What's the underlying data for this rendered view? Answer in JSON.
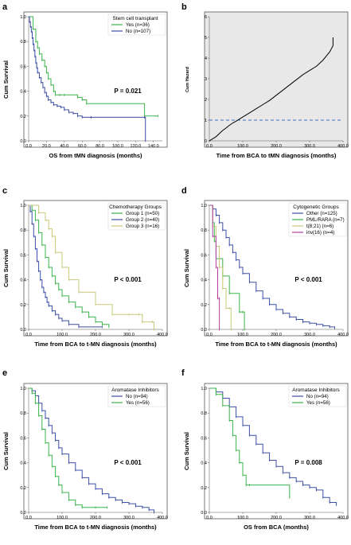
{
  "chart_data": [
    {
      "panel": "a",
      "type": "line",
      "ylabel": "Cum Survival",
      "xlabel": "OS from tMN diagnosis (months)",
      "xlim": [
        0,
        150
      ],
      "ylim": [
        0,
        1
      ],
      "xticks": [
        "0.0",
        "20.0",
        "40.0",
        "60.0",
        "80.0",
        "100.0",
        "120.0",
        "140.0"
      ],
      "yticks": [
        "0.0",
        "0.2",
        "0.4",
        "0.6",
        "0.8",
        "1.0"
      ],
      "legend_title": "Stem cell transplant",
      "legend_pos": "top-right",
      "annotation": "P = 0.021",
      "series": [
        {
          "name": "Yes (n=36)",
          "color": "#3cb44b",
          "x": [
            0,
            5,
            8,
            10,
            12,
            15,
            18,
            20,
            22,
            25,
            28,
            30,
            35,
            40,
            55,
            60,
            65,
            130,
            145
          ],
          "y": [
            1.0,
            0.9,
            0.8,
            0.75,
            0.7,
            0.65,
            0.6,
            0.55,
            0.5,
            0.45,
            0.4,
            0.37,
            0.37,
            0.37,
            0.35,
            0.33,
            0.3,
            0.2,
            0.2
          ]
        },
        {
          "name": "No (n=107)",
          "color": "#3c4fa8",
          "x": [
            0,
            1,
            2,
            3,
            4,
            5,
            6,
            7,
            8,
            9,
            10,
            12,
            14,
            16,
            18,
            20,
            22,
            25,
            28,
            32,
            36,
            40,
            45,
            50,
            55,
            60,
            70,
            130,
            131
          ],
          "y": [
            1.0,
            0.96,
            0.92,
            0.88,
            0.83,
            0.78,
            0.73,
            0.68,
            0.63,
            0.59,
            0.55,
            0.51,
            0.47,
            0.43,
            0.39,
            0.36,
            0.33,
            0.31,
            0.29,
            0.28,
            0.27,
            0.25,
            0.23,
            0.22,
            0.2,
            0.19,
            0.19,
            0.19,
            0.0
          ]
        }
      ]
    },
    {
      "panel": "b",
      "type": "line",
      "ylabel": "Cum Hazard",
      "xlabel": "Time from BCA to tMN diagnosis (months)",
      "xlim": [
        0,
        400
      ],
      "ylim": [
        0,
        6
      ],
      "xticks": [
        "0.0",
        "100.0",
        "200.0",
        "300.0",
        "400.0"
      ],
      "yticks": [
        "0",
        "1",
        "2",
        "3",
        "4",
        "5",
        "6"
      ],
      "reference_line": 1,
      "series": [
        {
          "name": "",
          "color": "#000000",
          "x": [
            0,
            10,
            20,
            30,
            40,
            50,
            60,
            70,
            80,
            100,
            120,
            140,
            160,
            180,
            200,
            220,
            240,
            260,
            280,
            300,
            320,
            340,
            350,
            360,
            365,
            370,
            370
          ],
          "y": [
            0,
            0.1,
            0.2,
            0.35,
            0.5,
            0.62,
            0.75,
            0.86,
            0.95,
            1.15,
            1.35,
            1.55,
            1.75,
            1.95,
            2.2,
            2.45,
            2.7,
            2.95,
            3.2,
            3.4,
            3.6,
            3.9,
            4.1,
            4.3,
            4.45,
            4.6,
            5.0
          ]
        }
      ]
    },
    {
      "panel": "c",
      "type": "line",
      "ylabel": "Cum Survival",
      "xlabel": "Time from BCA to t-MN diagnosis (months)",
      "xlim": [
        0,
        400
      ],
      "ylim": [
        0,
        1
      ],
      "xticks": [
        "0.0",
        "100.0",
        "200.0",
        "300.0",
        "400.0"
      ],
      "yticks": [
        "0.0",
        "0.2",
        "0.4",
        "0.6",
        "0.8",
        "1.0"
      ],
      "legend_title": "Chemotherapy Groups",
      "legend_pos": "top-right",
      "annotation": "P < 0.001",
      "series": [
        {
          "name": "Group 1 (n=50)",
          "color": "#3cb44b",
          "x": [
            0,
            10,
            20,
            30,
            40,
            50,
            60,
            70,
            80,
            90,
            100,
            120,
            140,
            160,
            180,
            200,
            220,
            240
          ],
          "y": [
            1.0,
            0.96,
            0.88,
            0.78,
            0.68,
            0.58,
            0.5,
            0.43,
            0.37,
            0.32,
            0.27,
            0.22,
            0.18,
            0.14,
            0.1,
            0.06,
            0.04,
            0.02
          ]
        },
        {
          "name": "Group 2 (n=40)",
          "color": "#3c4fa8",
          "x": [
            0,
            5,
            10,
            15,
            20,
            25,
            30,
            35,
            40,
            45,
            50,
            55,
            60,
            70,
            80,
            90,
            100,
            120,
            150,
            220
          ],
          "y": [
            1.0,
            0.95,
            0.85,
            0.75,
            0.65,
            0.55,
            0.47,
            0.4,
            0.34,
            0.3,
            0.26,
            0.22,
            0.19,
            0.15,
            0.12,
            0.09,
            0.07,
            0.04,
            0.02,
            0.02
          ]
        },
        {
          "name": "Group 3 (n=16)",
          "color": "#c8c878",
          "x": [
            0,
            30,
            50,
            60,
            70,
            80,
            100,
            120,
            150,
            200,
            250,
            300,
            330,
            340,
            370,
            375
          ],
          "y": [
            1.0,
            0.94,
            0.88,
            0.81,
            0.75,
            0.62,
            0.5,
            0.4,
            0.3,
            0.2,
            0.12,
            0.12,
            0.12,
            0.06,
            0.06,
            0.0
          ]
        }
      ]
    },
    {
      "panel": "d",
      "type": "line",
      "ylabel": "Cum Survival",
      "xlabel": "Time from BCA to t-MN diagnosis (months)",
      "xlim": [
        0,
        400
      ],
      "ylim": [
        0,
        1
      ],
      "xticks": [
        "0.0",
        "100.0",
        "200.0",
        "300.0",
        "400.0"
      ],
      "yticks": [
        "0.0",
        "0.2",
        "0.4",
        "0.6",
        "0.8",
        "1.0"
      ],
      "legend_title": "Cytogenetic Groups",
      "legend_pos": "top-right",
      "annotation": "P < 0.001",
      "series": [
        {
          "name": "Other (n=125)",
          "color": "#3c4fa8",
          "x": [
            0,
            10,
            20,
            30,
            40,
            50,
            60,
            70,
            80,
            90,
            100,
            120,
            140,
            160,
            180,
            200,
            220,
            240,
            260,
            280,
            300,
            320,
            340,
            360,
            375
          ],
          "y": [
            1.0,
            0.97,
            0.92,
            0.86,
            0.8,
            0.74,
            0.68,
            0.62,
            0.56,
            0.5,
            0.45,
            0.38,
            0.31,
            0.25,
            0.2,
            0.16,
            0.13,
            0.1,
            0.08,
            0.06,
            0.05,
            0.04,
            0.03,
            0.02,
            0.01
          ]
        },
        {
          "name": "PML/RARA (n=7)",
          "color": "#3cb44b",
          "x": [
            0,
            10,
            15,
            20,
            40,
            60,
            90,
            100,
            105
          ],
          "y": [
            1.0,
            0.86,
            0.71,
            0.57,
            0.43,
            0.29,
            0.14,
            0.14,
            0.0
          ]
        },
        {
          "name": "t(8;21) (n=6)",
          "color": "#c8c878",
          "x": [
            0,
            10,
            20,
            30,
            40,
            50,
            60,
            65
          ],
          "y": [
            1.0,
            0.83,
            0.67,
            0.5,
            0.33,
            0.17,
            0.17,
            0.0
          ]
        },
        {
          "name": "inv(16) (n=4)",
          "color": "#b03fa0",
          "x": [
            0,
            10,
            20,
            25,
            30,
            30
          ],
          "y": [
            1.0,
            0.75,
            0.5,
            0.25,
            0.25,
            0.0
          ]
        }
      ]
    },
    {
      "panel": "e",
      "type": "line",
      "ylabel": "Cum Survival",
      "xlabel": "Time from BCA to t-MN diagnosis (months)",
      "xlim": [
        0,
        400
      ],
      "ylim": [
        0,
        1
      ],
      "xticks": [
        "0.0",
        "100.0",
        "200.0",
        "300.0",
        "400.0"
      ],
      "yticks": [
        "0.0",
        "0.2",
        "0.4",
        "0.6",
        "0.8",
        "1.0"
      ],
      "legend_title": "Aromatase Inhibitors",
      "legend_pos": "top-right",
      "annotation": "P < 0.001",
      "series": [
        {
          "name": "No (n=94)",
          "color": "#3c4fa8",
          "x": [
            0,
            10,
            20,
            30,
            40,
            50,
            60,
            70,
            80,
            90,
            100,
            120,
            140,
            160,
            180,
            200,
            220,
            240,
            260,
            280,
            300,
            320,
            340,
            360,
            375
          ],
          "y": [
            1.0,
            0.98,
            0.94,
            0.88,
            0.82,
            0.76,
            0.7,
            0.64,
            0.58,
            0.52,
            0.47,
            0.4,
            0.34,
            0.28,
            0.23,
            0.19,
            0.15,
            0.12,
            0.1,
            0.08,
            0.07,
            0.05,
            0.04,
            0.02,
            0.0
          ]
        },
        {
          "name": "Yes (n=56)",
          "color": "#3cb44b",
          "x": [
            0,
            10,
            20,
            30,
            40,
            50,
            60,
            70,
            80,
            90,
            100,
            120,
            140,
            160,
            200,
            235
          ],
          "y": [
            1.0,
            0.96,
            0.88,
            0.78,
            0.67,
            0.56,
            0.46,
            0.37,
            0.29,
            0.22,
            0.16,
            0.1,
            0.06,
            0.04,
            0.04,
            0.04
          ]
        }
      ]
    },
    {
      "panel": "f",
      "type": "line",
      "ylabel": "Cum Survival",
      "xlabel": "OS from BCA (months)",
      "xlim": [
        0,
        400
      ],
      "ylim": [
        0,
        1
      ],
      "xticks": [
        "0.0",
        "100.0",
        "200.0",
        "300.0",
        "400.0"
      ],
      "yticks": [
        "0.0",
        "0.2",
        "0.4",
        "0.6",
        "0.8",
        "1.0"
      ],
      "legend_title": "Aromatase Inhibitors",
      "legend_pos": "top-right",
      "annotation": "P = 0.008",
      "series": [
        {
          "name": "No (n=94)",
          "color": "#3c4fa8",
          "x": [
            0,
            20,
            40,
            60,
            80,
            100,
            120,
            140,
            160,
            180,
            200,
            220,
            240,
            260,
            280,
            300,
            320,
            340,
            360,
            380
          ],
          "y": [
            1.0,
            0.97,
            0.92,
            0.85,
            0.77,
            0.7,
            0.62,
            0.55,
            0.48,
            0.42,
            0.37,
            0.32,
            0.28,
            0.25,
            0.22,
            0.2,
            0.18,
            0.12,
            0.08,
            0.06
          ]
        },
        {
          "name": "Yes (n=56)",
          "color": "#3cb44b",
          "x": [
            0,
            20,
            40,
            60,
            70,
            80,
            90,
            100,
            110,
            120,
            240
          ],
          "y": [
            1.0,
            0.95,
            0.86,
            0.74,
            0.62,
            0.5,
            0.4,
            0.3,
            0.22,
            0.22,
            0.12
          ]
        }
      ]
    }
  ]
}
